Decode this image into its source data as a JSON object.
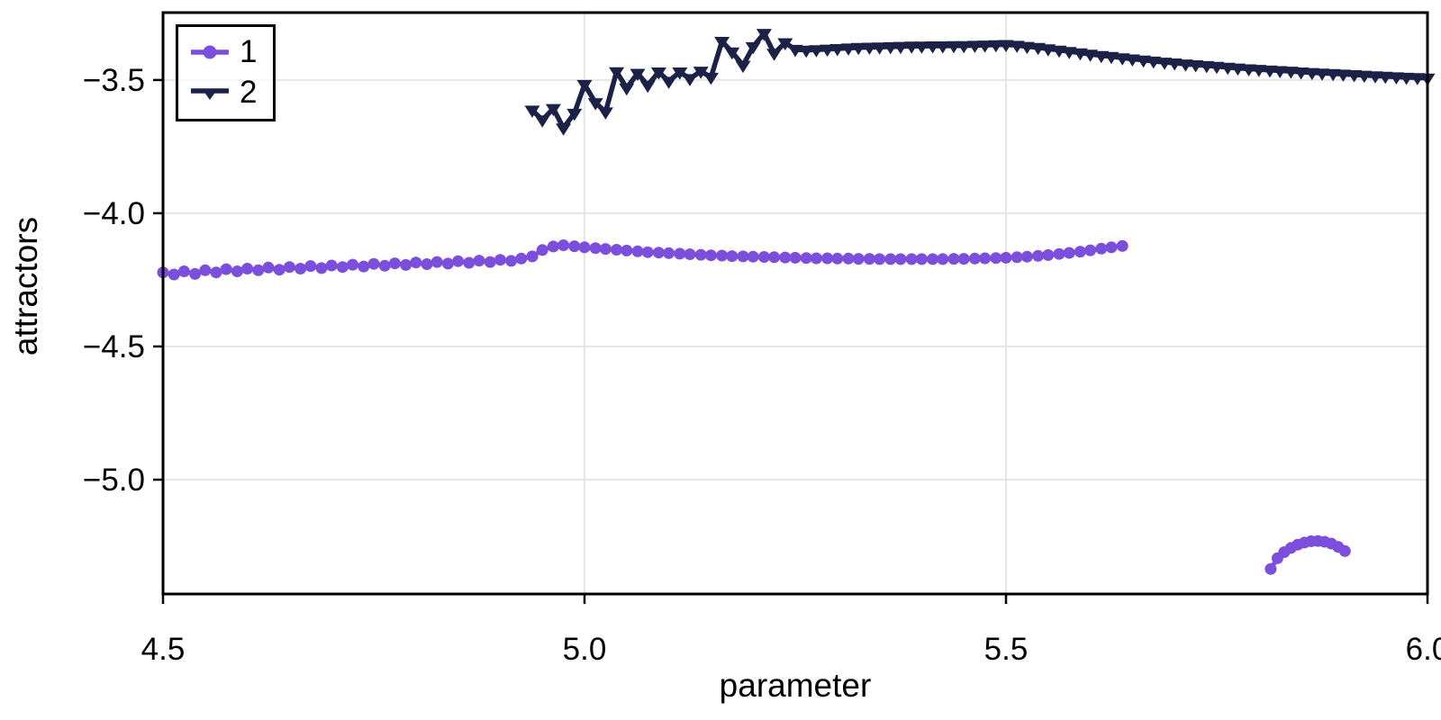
{
  "chart_data": {
    "type": "line",
    "title": "",
    "xlabel": "parameter",
    "ylabel": "attractors",
    "xlim": [
      4.5,
      6.0
    ],
    "ylim": [
      -5.429,
      -3.247
    ],
    "xticks": [
      4.5,
      5.0,
      5.5,
      6.0
    ],
    "xtick_labels": [
      "4.5",
      "5.0",
      "5.5",
      "6.0"
    ],
    "yticks": [
      -3.5,
      -4.0,
      -4.5,
      -5.0
    ],
    "ytick_labels": [
      "−3.5",
      "−4.0",
      "−4.5",
      "−5.0"
    ],
    "grid": true,
    "grid_color": "#e6e6e6",
    "frame_color": "#000000",
    "tick_label_color": "#000000",
    "legend_position": "top-left",
    "series": [
      {
        "name": "1",
        "color": "#7B4EDB",
        "marker": "circle",
        "segments": [
          [
            [
              4.5,
              -4.222
            ],
            [
              4.513,
              -4.23
            ],
            [
              4.525,
              -4.218
            ],
            [
              4.538,
              -4.228
            ],
            [
              4.55,
              -4.214
            ],
            [
              4.563,
              -4.222
            ],
            [
              4.575,
              -4.21
            ],
            [
              4.588,
              -4.218
            ],
            [
              4.6,
              -4.208
            ],
            [
              4.613,
              -4.214
            ],
            [
              4.625,
              -4.204
            ],
            [
              4.638,
              -4.212
            ],
            [
              4.65,
              -4.202
            ],
            [
              4.663,
              -4.208
            ],
            [
              4.675,
              -4.198
            ],
            [
              4.688,
              -4.206
            ],
            [
              4.7,
              -4.196
            ],
            [
              4.713,
              -4.202
            ],
            [
              4.725,
              -4.193
            ],
            [
              4.738,
              -4.2
            ],
            [
              4.75,
              -4.19
            ],
            [
              4.763,
              -4.197
            ],
            [
              4.775,
              -4.188
            ],
            [
              4.788,
              -4.194
            ],
            [
              4.8,
              -4.185
            ],
            [
              4.813,
              -4.191
            ],
            [
              4.825,
              -4.183
            ],
            [
              4.838,
              -4.189
            ],
            [
              4.85,
              -4.18
            ],
            [
              4.863,
              -4.186
            ],
            [
              4.875,
              -4.178
            ],
            [
              4.888,
              -4.183
            ],
            [
              4.9,
              -4.175
            ],
            [
              4.913,
              -4.179
            ],
            [
              4.925,
              -4.17
            ],
            [
              4.938,
              -4.162
            ],
            [
              4.95,
              -4.138
            ],
            [
              4.963,
              -4.125
            ],
            [
              4.975,
              -4.12
            ],
            [
              4.988,
              -4.124
            ],
            [
              5.0,
              -4.128
            ],
            [
              5.013,
              -4.131
            ],
            [
              5.025,
              -4.134
            ],
            [
              5.038,
              -4.137
            ],
            [
              5.05,
              -4.14
            ],
            [
              5.063,
              -4.143
            ],
            [
              5.075,
              -4.146
            ],
            [
              5.088,
              -4.148
            ],
            [
              5.1,
              -4.15
            ],
            [
              5.113,
              -4.152
            ],
            [
              5.125,
              -4.154
            ],
            [
              5.138,
              -4.156
            ],
            [
              5.15,
              -4.158
            ],
            [
              5.163,
              -4.159
            ],
            [
              5.175,
              -4.161
            ],
            [
              5.188,
              -4.162
            ],
            [
              5.2,
              -4.163
            ],
            [
              5.213,
              -4.164
            ],
            [
              5.225,
              -4.165
            ],
            [
              5.238,
              -4.166
            ],
            [
              5.25,
              -4.167
            ],
            [
              5.263,
              -4.168
            ],
            [
              5.275,
              -4.169
            ],
            [
              5.288,
              -4.169
            ],
            [
              5.3,
              -4.17
            ],
            [
              5.313,
              -4.17
            ],
            [
              5.325,
              -4.171
            ],
            [
              5.338,
              -4.171
            ],
            [
              5.35,
              -4.172
            ],
            [
              5.363,
              -4.172
            ],
            [
              5.375,
              -4.172
            ],
            [
              5.388,
              -4.172
            ],
            [
              5.4,
              -4.172
            ],
            [
              5.413,
              -4.172
            ],
            [
              5.425,
              -4.172
            ],
            [
              5.438,
              -4.171
            ],
            [
              5.45,
              -4.171
            ],
            [
              5.463,
              -4.17
            ],
            [
              5.475,
              -4.169
            ],
            [
              5.488,
              -4.168
            ],
            [
              5.5,
              -4.167
            ],
            [
              5.513,
              -4.165
            ],
            [
              5.525,
              -4.163
            ],
            [
              5.538,
              -4.16
            ],
            [
              5.55,
              -4.157
            ],
            [
              5.563,
              -4.153
            ],
            [
              5.575,
              -4.149
            ],
            [
              5.588,
              -4.144
            ],
            [
              5.6,
              -4.139
            ],
            [
              5.613,
              -4.133
            ],
            [
              5.625,
              -4.128
            ],
            [
              5.638,
              -4.123
            ]
          ],
          [
            [
              5.814,
              -5.335
            ],
            [
              5.822,
              -5.295
            ],
            [
              5.83,
              -5.272
            ],
            [
              5.838,
              -5.256
            ],
            [
              5.846,
              -5.244
            ],
            [
              5.854,
              -5.236
            ],
            [
              5.862,
              -5.231
            ],
            [
              5.87,
              -5.23
            ],
            [
              5.878,
              -5.233
            ],
            [
              5.886,
              -5.24
            ],
            [
              5.894,
              -5.252
            ],
            [
              5.902,
              -5.268
            ]
          ]
        ]
      },
      {
        "name": "2",
        "color": "#1C2147",
        "marker": "triangle-down",
        "segments": [
          [
            [
              4.938,
              -3.613
            ],
            [
              4.95,
              -3.65
            ],
            [
              4.963,
              -3.607
            ],
            [
              4.975,
              -3.68
            ],
            [
              4.988,
              -3.625
            ],
            [
              5.0,
              -3.517
            ],
            [
              5.013,
              -3.585
            ],
            [
              5.025,
              -3.62
            ],
            [
              5.038,
              -3.469
            ],
            [
              5.05,
              -3.53
            ],
            [
              5.063,
              -3.475
            ],
            [
              5.075,
              -3.52
            ],
            [
              5.088,
              -3.47
            ],
            [
              5.1,
              -3.505
            ],
            [
              5.113,
              -3.47
            ],
            [
              5.125,
              -3.495
            ],
            [
              5.138,
              -3.467
            ],
            [
              5.15,
              -3.49
            ],
            [
              5.163,
              -3.355
            ],
            [
              5.175,
              -3.395
            ],
            [
              5.188,
              -3.445
            ],
            [
              5.2,
              -3.375
            ],
            [
              5.213,
              -3.325
            ],
            [
              5.225,
              -3.4
            ],
            [
              5.238,
              -3.36
            ],
            [
              5.25,
              -3.385
            ],
            [
              5.263,
              -3.388
            ],
            [
              5.275,
              -3.386
            ],
            [
              5.288,
              -3.384
            ],
            [
              5.3,
              -3.382
            ],
            [
              5.313,
              -3.38
            ],
            [
              5.325,
              -3.378
            ],
            [
              5.338,
              -3.377
            ],
            [
              5.35,
              -3.376
            ],
            [
              5.363,
              -3.375
            ],
            [
              5.375,
              -3.374
            ],
            [
              5.388,
              -3.373
            ],
            [
              5.4,
              -3.373
            ],
            [
              5.413,
              -3.372
            ],
            [
              5.425,
              -3.372
            ],
            [
              5.438,
              -3.371
            ],
            [
              5.45,
              -3.371
            ],
            [
              5.463,
              -3.37
            ],
            [
              5.475,
              -3.369
            ],
            [
              5.488,
              -3.368
            ],
            [
              5.5,
              -3.367
            ],
            [
              5.513,
              -3.37
            ],
            [
              5.525,
              -3.374
            ],
            [
              5.538,
              -3.378
            ],
            [
              5.55,
              -3.383
            ],
            [
              5.563,
              -3.388
            ],
            [
              5.575,
              -3.393
            ],
            [
              5.588,
              -3.398
            ],
            [
              5.6,
              -3.403
            ],
            [
              5.613,
              -3.408
            ],
            [
              5.625,
              -3.412
            ],
            [
              5.638,
              -3.417
            ],
            [
              5.65,
              -3.421
            ],
            [
              5.663,
              -3.425
            ],
            [
              5.675,
              -3.429
            ],
            [
              5.688,
              -3.433
            ],
            [
              5.7,
              -3.436
            ],
            [
              5.713,
              -3.44
            ],
            [
              5.725,
              -3.443
            ],
            [
              5.738,
              -3.446
            ],
            [
              5.75,
              -3.449
            ],
            [
              5.763,
              -3.452
            ],
            [
              5.775,
              -3.455
            ],
            [
              5.788,
              -3.458
            ],
            [
              5.8,
              -3.46
            ],
            [
              5.813,
              -3.463
            ],
            [
              5.825,
              -3.465
            ],
            [
              5.838,
              -3.467
            ],
            [
              5.85,
              -3.47
            ],
            [
              5.863,
              -3.472
            ],
            [
              5.875,
              -3.474
            ],
            [
              5.888,
              -3.476
            ],
            [
              5.9,
              -3.478
            ],
            [
              5.913,
              -3.48
            ],
            [
              5.925,
              -3.482
            ],
            [
              5.938,
              -3.484
            ],
            [
              5.95,
              -3.486
            ],
            [
              5.963,
              -3.488
            ],
            [
              5.975,
              -3.49
            ],
            [
              5.988,
              -3.491
            ],
            [
              6.0,
              -3.493
            ]
          ]
        ]
      }
    ]
  }
}
